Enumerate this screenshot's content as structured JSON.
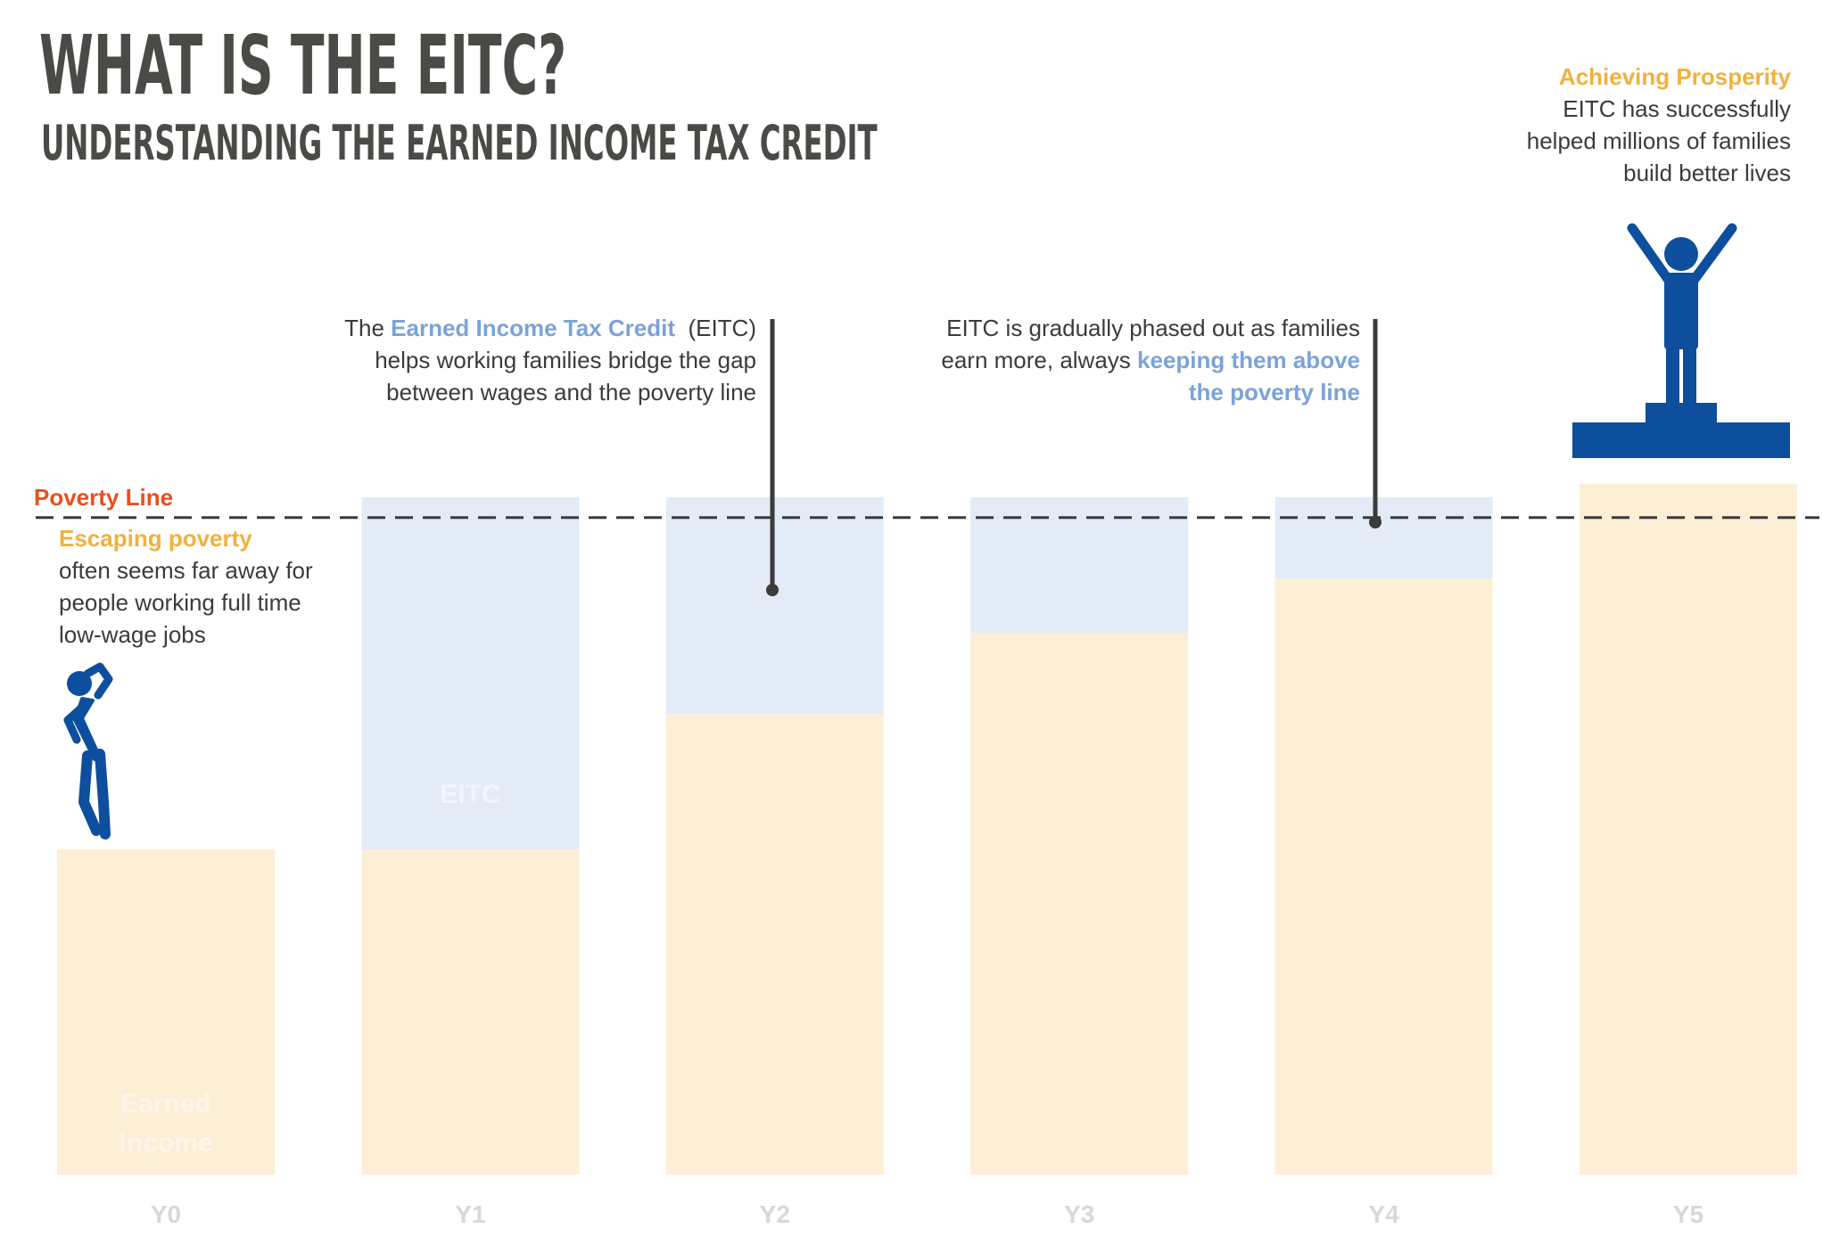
{
  "header": {
    "title": "WHAT IS THE EITC?",
    "subtitle": "UNDERSTANDING THE EARNED INCOME TAX CREDIT"
  },
  "annotations": {
    "escaping": {
      "heading": "Escaping poverty",
      "line1": "often seems far away for",
      "line2": "people working full time",
      "line3": "low-wage jobs"
    },
    "eitc_intro": {
      "pre": "The",
      "highlight": "Earned Income Tax Credit",
      "post": "(EITC)",
      "line2": "helps working families bridge the gap",
      "line3": "between wages and the poverty line"
    },
    "phase_out": {
      "line1": "EITC is gradually phased out as families",
      "line2_pre": "earn more, always",
      "line2_highlight": "keeping them above",
      "line3_highlight": "the poverty line"
    },
    "prosperity": {
      "heading": "Achieving Prosperity",
      "line1": "EITC has successfully",
      "line2": "helped millions of families",
      "line3": "build better lives"
    }
  },
  "poverty_line_label": "Poverty Line",
  "bar_labels": {
    "eitc": "EITC",
    "earned_line1": "Earned",
    "earned_line2": "Income"
  },
  "icons": {
    "thinking_person": "person-thinking-icon",
    "celebrating_person": "person-celebrating-icon",
    "podium": "podium-icon"
  },
  "colors": {
    "earned_income": "#fcefd6",
    "eitc": "#e3ebf6",
    "poverty_line": "#3a3a3a",
    "poverty_label": "#e8501f",
    "person": "#0d4f9c",
    "title": "#4a4a47",
    "orange": "#f0b13e",
    "blue_text": "#7ba3d8",
    "axis_label": "#d8d8d8"
  },
  "chart_data": {
    "type": "bar",
    "stacked": true,
    "categories": [
      "Y0",
      "Y1",
      "Y2",
      "Y3",
      "Y4",
      "Y5"
    ],
    "series": [
      {
        "name": "Earned Income",
        "values": [
          48,
          48,
          68,
          80,
          88,
          102
        ]
      },
      {
        "name": "EITC",
        "values": [
          0,
          52,
          32,
          20,
          12,
          0
        ]
      }
    ],
    "poverty_line": 97,
    "ylim": [
      0,
      130
    ],
    "grid": false,
    "xlabel": "",
    "ylabel": ""
  }
}
